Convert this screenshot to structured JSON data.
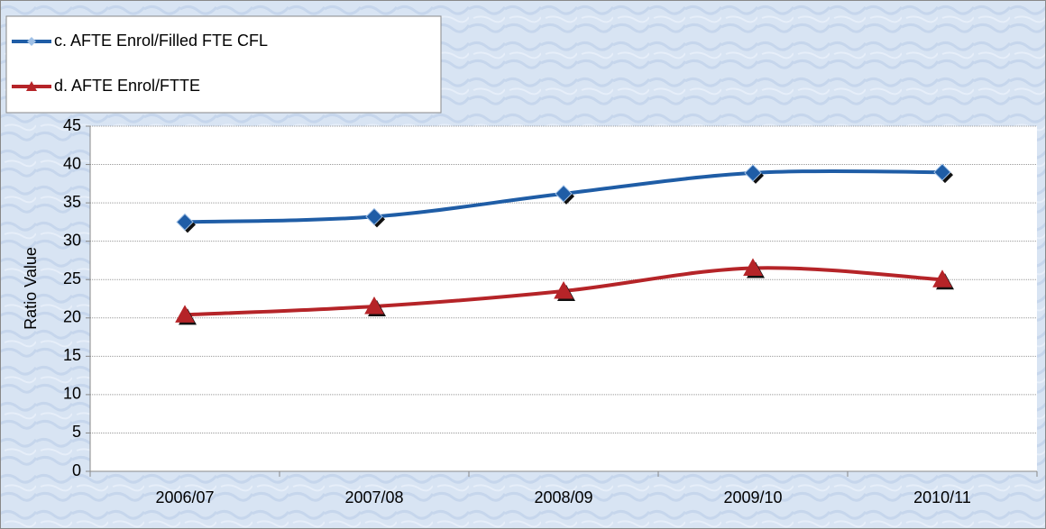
{
  "chart_data": {
    "type": "line",
    "y_label": "Ratio Value",
    "categories": [
      "2006/07",
      "2007/08",
      "2008/09",
      "2009/10",
      "2010/11"
    ],
    "series": [
      {
        "name": "c. AFTE Enrol/Filled FTE CFL",
        "color": "#1f5da6",
        "marker": "diamond",
        "values": [
          32.5,
          33.2,
          36.2,
          38.9,
          39.0
        ]
      },
      {
        "name": "d. AFTE Enrol/FTTE",
        "color": "#b52428",
        "marker": "triangle",
        "values": [
          20.4,
          21.5,
          23.5,
          26.5,
          25.0
        ]
      }
    ],
    "ylim": [
      0,
      45
    ],
    "yticks": [
      0,
      5,
      10,
      15,
      20,
      25,
      30,
      35,
      40,
      45
    ],
    "grid": true,
    "smooth": true,
    "legend": "top-left"
  }
}
